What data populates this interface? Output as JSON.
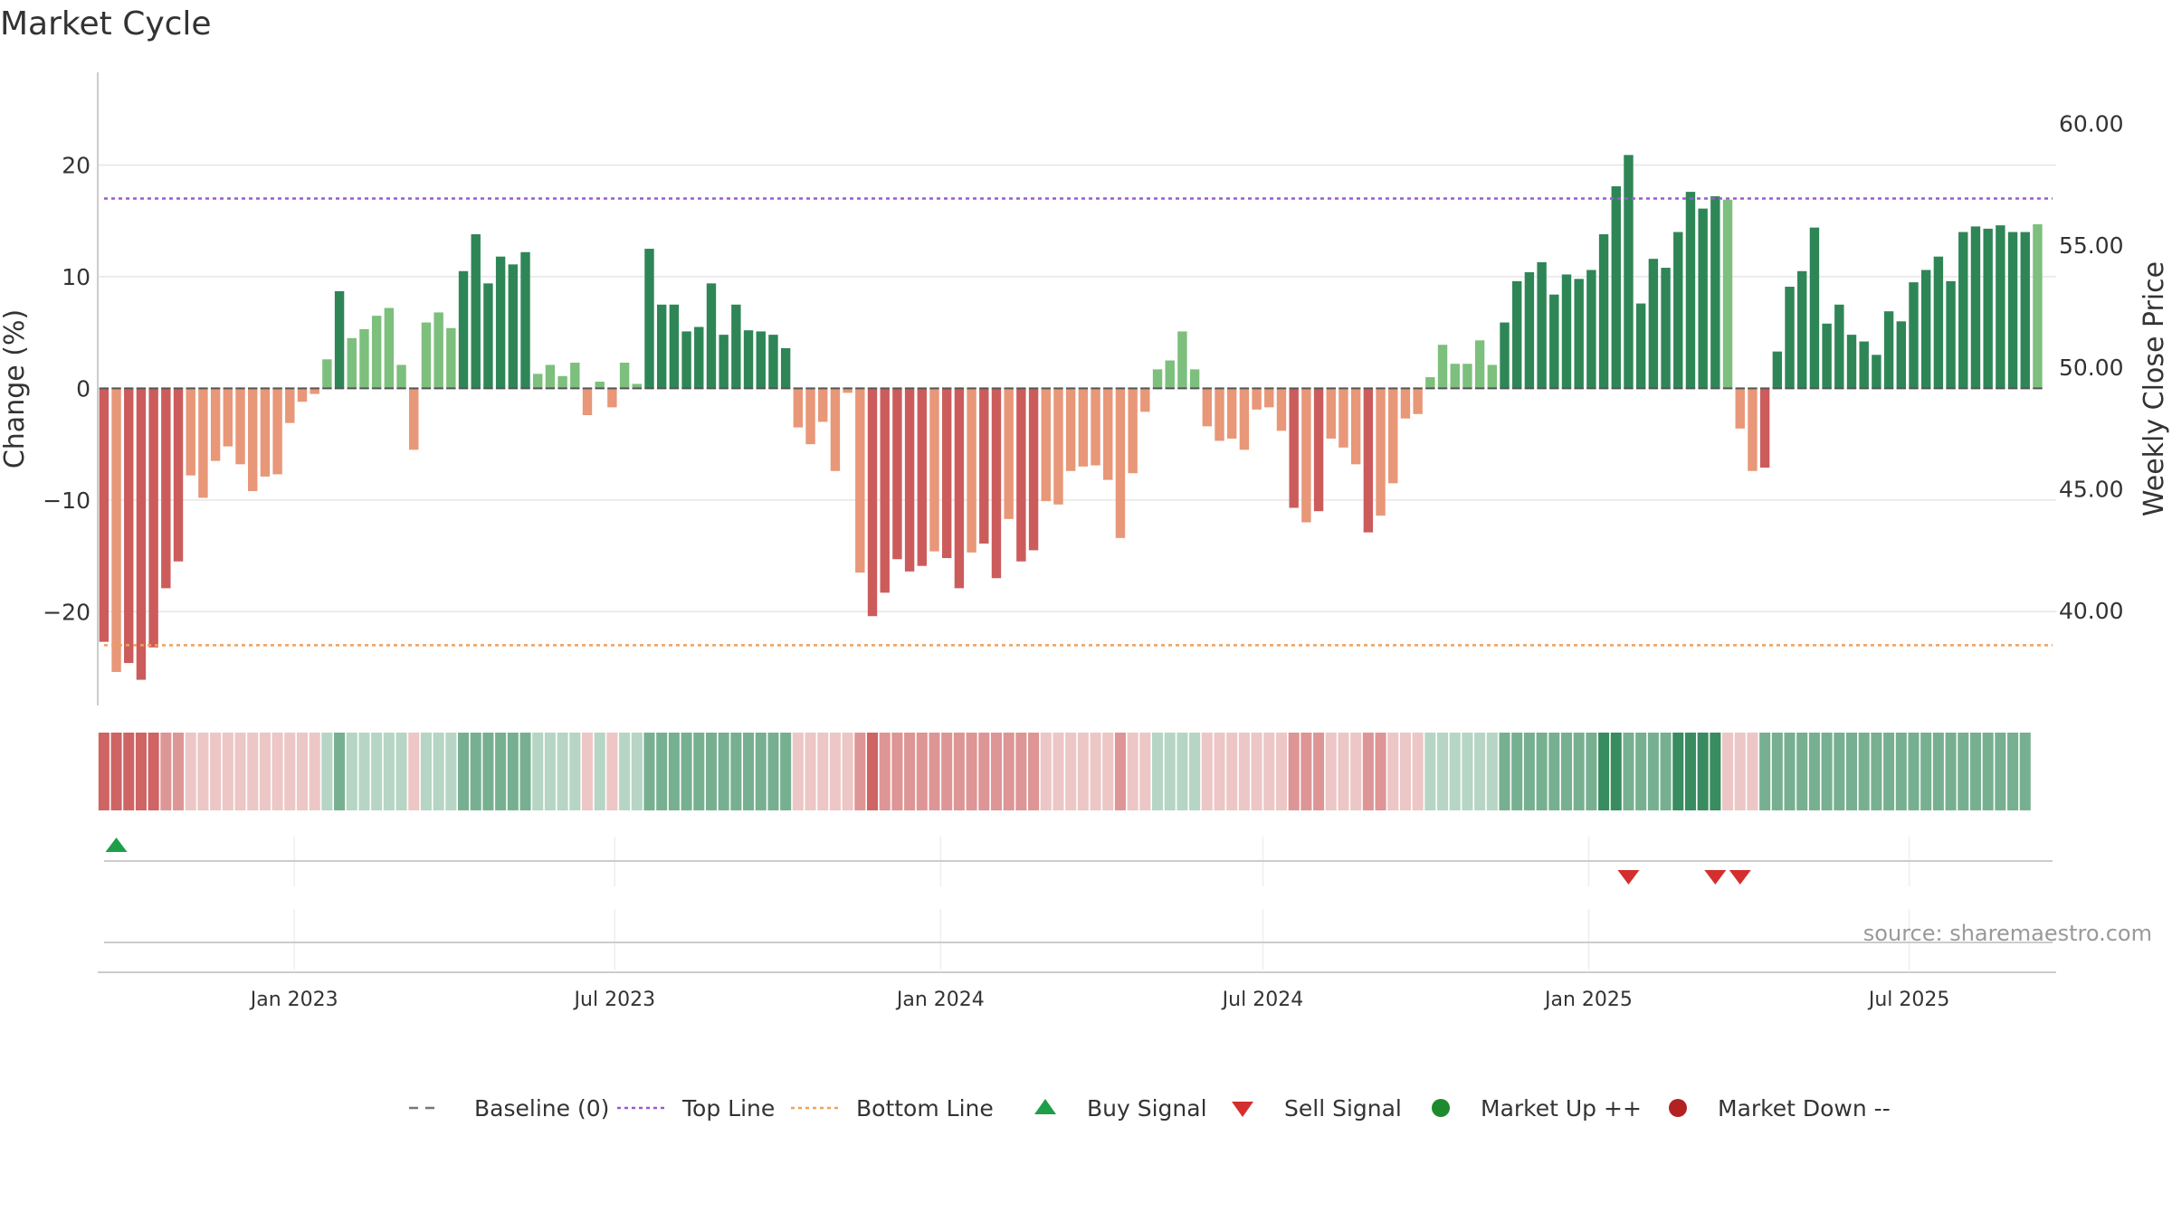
{
  "chart_data": {
    "type": "bar",
    "title": "Market Cycle",
    "ylabel": "Change (%)",
    "ylabel_right": "Weekly Close Price",
    "ylim": [
      -28.4,
      28.3
    ],
    "yticks": [
      -20,
      -10,
      0,
      10,
      20
    ],
    "ylim_right": [
      36.1,
      62.1
    ],
    "yticks_right": [
      "40.00",
      "45.00",
      "50.00",
      "55.00",
      "60.00"
    ],
    "xlim": [
      "2022-09-12",
      "2025-09-22"
    ],
    "xticks": [
      {
        "date": "2023-01-01",
        "label": "Jan 2023"
      },
      {
        "date": "2023-07-01",
        "label": "Jul 2023"
      },
      {
        "date": "2024-01-01",
        "label": "Jan 2024"
      },
      {
        "date": "2024-07-01",
        "label": "Jul 2024"
      },
      {
        "date": "2025-01-01",
        "label": "Jan 2025"
      },
      {
        "date": "2025-07-01",
        "label": "Jul 2025"
      }
    ],
    "reference_lines": {
      "baseline": 0,
      "top_line": 17.0,
      "bottom_line": -23.0
    },
    "start_week": "2022-09-12",
    "values": [
      -22.7,
      -25.4,
      -24.6,
      -26.1,
      -23.2,
      -17.9,
      -15.5,
      -7.8,
      -9.8,
      -6.5,
      -5.2,
      -6.8,
      -9.2,
      -7.9,
      -7.7,
      -3.1,
      -1.2,
      -0.5,
      2.6,
      8.7,
      4.5,
      5.3,
      6.5,
      7.2,
      2.1,
      -5.5,
      5.9,
      6.8,
      5.4,
      10.5,
      13.8,
      9.4,
      11.8,
      11.1,
      12.2,
      1.3,
      2.1,
      1.1,
      2.3,
      -2.4,
      0.6,
      -1.7,
      2.3,
      0.4,
      12.5,
      7.5,
      7.5,
      5.1,
      5.5,
      9.4,
      4.8,
      7.5,
      5.2,
      5.1,
      4.8,
      3.6,
      -3.5,
      -5.0,
      -3.0,
      -7.4,
      -0.4,
      -16.5,
      -20.4,
      -18.3,
      -15.3,
      -16.4,
      -15.9,
      -14.6,
      -15.2,
      -17.9,
      -14.7,
      -13.9,
      -17.0,
      -11.7,
      -15.5,
      -14.5,
      -10.1,
      -10.4,
      -7.4,
      -7.0,
      -6.9,
      -8.2,
      -13.4,
      -7.6,
      -2.1,
      1.7,
      2.5,
      5.1,
      1.7,
      -3.4,
      -4.7,
      -4.5,
      -5.5,
      -1.9,
      -1.7,
      -3.8,
      -10.7,
      -12.0,
      -11.0,
      -4.5,
      -5.3,
      -6.8,
      -12.9,
      -11.4,
      -8.5,
      -2.7,
      -2.3,
      1.0,
      3.9,
      2.2,
      2.2,
      4.3,
      2.1,
      5.9,
      9.6,
      10.4,
      11.3,
      8.4,
      10.2,
      9.8,
      10.6,
      13.8,
      18.1,
      20.9,
      7.6,
      11.6,
      10.8,
      14.0,
      17.6,
      16.1,
      17.2,
      16.9,
      -3.6,
      -7.4,
      -7.1,
      3.3,
      9.1,
      10.5,
      14.4,
      5.8,
      7.5,
      4.8,
      4.2,
      3.0,
      6.9,
      6.0,
      9.5,
      10.6,
      11.8,
      9.6,
      14.0,
      14.5,
      14.3,
      14.6,
      14.0,
      14.0,
      14.7
    ],
    "shade_levels": [
      -3,
      -3,
      -3,
      -3,
      -3,
      -2,
      -2,
      -1,
      -1,
      -1,
      -1,
      -1,
      -1,
      -1,
      -1,
      -1,
      -1,
      -1,
      1,
      2,
      1,
      1,
      1,
      1,
      1,
      -1,
      1,
      1,
      1,
      2,
      2,
      2,
      2,
      2,
      2,
      1,
      1,
      1,
      1,
      -1,
      1,
      -1,
      1,
      1,
      2,
      2,
      2,
      2,
      2,
      2,
      2,
      2,
      2,
      2,
      2,
      2,
      -1,
      -1,
      -1,
      -1,
      -1,
      -2,
      -3,
      -2,
      -2,
      -2,
      -2,
      -2,
      -2,
      -2,
      -2,
      -2,
      -2,
      -2,
      -2,
      -2,
      -1,
      -1,
      -1,
      -1,
      -1,
      -1,
      -2,
      -1,
      -1,
      1,
      1,
      1,
      1,
      -1,
      -1,
      -1,
      -1,
      -1,
      -1,
      -1,
      -2,
      -2,
      -2,
      -1,
      -1,
      -1,
      -2,
      -2,
      -1,
      -1,
      -1,
      1,
      1,
      1,
      1,
      1,
      1,
      2,
      2,
      2,
      2,
      2,
      2,
      2,
      2,
      3,
      3,
      2,
      2,
      2,
      2,
      3,
      3,
      3,
      3,
      -1,
      -1,
      -1,
      2,
      2,
      2,
      2,
      2,
      2,
      2,
      2,
      2,
      2,
      2,
      2,
      2,
      2,
      2,
      2,
      2,
      2,
      2,
      2,
      2,
      2
    ],
    "signals": [
      {
        "type": "buy",
        "date": "2022-09-19"
      },
      {
        "type": "sell",
        "date": "2025-01-20"
      },
      {
        "type": "sell",
        "date": "2025-03-10"
      },
      {
        "type": "sell",
        "date": "2025-03-24"
      }
    ],
    "legend_position": "bottom-center",
    "grid": true
  },
  "colors": {
    "up_dark": "#2e8656",
    "up_light": "#7dbf7d",
    "down_dark": "#cc5c5c",
    "down_light": "#e89778",
    "top_line": "#9b59d0",
    "bottom_line": "#f0a05a",
    "buy": "#1f9e4a",
    "sell": "#d32f2f",
    "market_up": "#1e8a2e",
    "market_down": "#b22222",
    "baseline": "#555555"
  },
  "legend": [
    {
      "key": "baseline",
      "label": "Baseline (0)",
      "icon": "dashed-line-icon"
    },
    {
      "key": "top",
      "label": "Top Line",
      "icon": "dotted-line-icon"
    },
    {
      "key": "bottom",
      "label": "Bottom Line",
      "icon": "dotted-line-icon"
    },
    {
      "key": "buy",
      "label": "Buy Signal",
      "icon": "triangle-up-icon"
    },
    {
      "key": "sell",
      "label": "Sell Signal",
      "icon": "triangle-down-icon"
    },
    {
      "key": "up",
      "label": "Market Up ++",
      "icon": "circle-icon"
    },
    {
      "key": "down",
      "label": "Market Down --",
      "icon": "circle-icon"
    }
  ],
  "source": "source: sharemaestro.com"
}
